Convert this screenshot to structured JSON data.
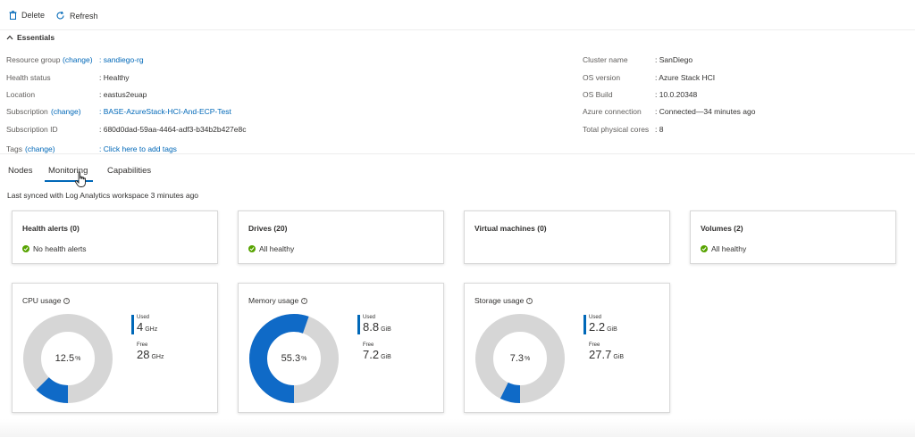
{
  "toolbar": {
    "delete_label": "Delete",
    "refresh_label": "Refresh"
  },
  "essentials": {
    "header": "Essentials",
    "left": [
      {
        "label": "Resource group",
        "change": "(change)",
        "value": "sandiego-rg",
        "value_link": true
      },
      {
        "label": "Health status",
        "change": "",
        "value": "Healthy",
        "value_link": false
      },
      {
        "label": "Location",
        "change": "",
        "value": "eastus2euap",
        "value_link": false
      },
      {
        "label": "Subscription",
        "change": "(change)",
        "value": "BASE-AzureStack-HCI-And-ECP-Test",
        "value_link": true
      },
      {
        "label": "Subscription ID",
        "change": "",
        "value": "680d0dad-59aa-4464-adf3-b34b2b427e8c",
        "value_link": false
      },
      {
        "label": "Tags",
        "change": "(change)",
        "value": "Click here to add tags",
        "value_link": true
      }
    ],
    "right": [
      {
        "label": "Cluster name",
        "value": "SanDiego"
      },
      {
        "label": "OS version",
        "value": "Azure Stack HCI"
      },
      {
        "label": "OS Build",
        "value": "10.0.20348"
      },
      {
        "label": "Azure connection",
        "value": "Connected—34 minutes ago"
      },
      {
        "label": "Total physical cores",
        "value": "8"
      }
    ]
  },
  "tabs": [
    {
      "label": "Nodes",
      "active": false
    },
    {
      "label": "Monitoring",
      "active": true
    },
    {
      "label": "Capabilities",
      "active": false
    }
  ],
  "sync_text": "Last synced with Log Analytics workspace 3 minutes ago",
  "status_cards": [
    {
      "title": "Health alerts (0)",
      "status": "No health alerts"
    },
    {
      "title": "Drives (20)",
      "status": "All healthy"
    },
    {
      "title": "Virtual machines (0)",
      "status": ""
    },
    {
      "title": "Volumes (2)",
      "status": "All healthy"
    }
  ],
  "usage_cards": [
    {
      "title": "CPU usage",
      "percent": "12.5",
      "percent_unit": "%",
      "fraction": 0.125,
      "used_label": "Used",
      "used_value": "4",
      "used_unit": "GHz",
      "free_label": "Free",
      "free_value": "28",
      "free_unit": "GHz"
    },
    {
      "title": "Memory usage",
      "percent": "55.3",
      "percent_unit": "%",
      "fraction": 0.553,
      "used_label": "Used",
      "used_value": "8.8",
      "used_unit": "GiB",
      "free_label": "Free",
      "free_value": "7.2",
      "free_unit": "GiB"
    },
    {
      "title": "Storage usage",
      "percent": "7.3",
      "percent_unit": "%",
      "fraction": 0.073,
      "used_label": "Used",
      "used_value": "2.2",
      "used_unit": "GiB",
      "free_label": "Free",
      "free_value": "27.7",
      "free_unit": "GiB"
    }
  ],
  "colors": {
    "accent": "#0068b8",
    "used_ring": "#0f6ac7",
    "free_ring": "#d6d6d6",
    "healthy": "#57a300"
  },
  "icons": {
    "delete": "trash-icon",
    "refresh": "refresh-icon",
    "essentials": "chevron-up-icon",
    "status": "check-circle-icon",
    "info": "info-icon"
  }
}
